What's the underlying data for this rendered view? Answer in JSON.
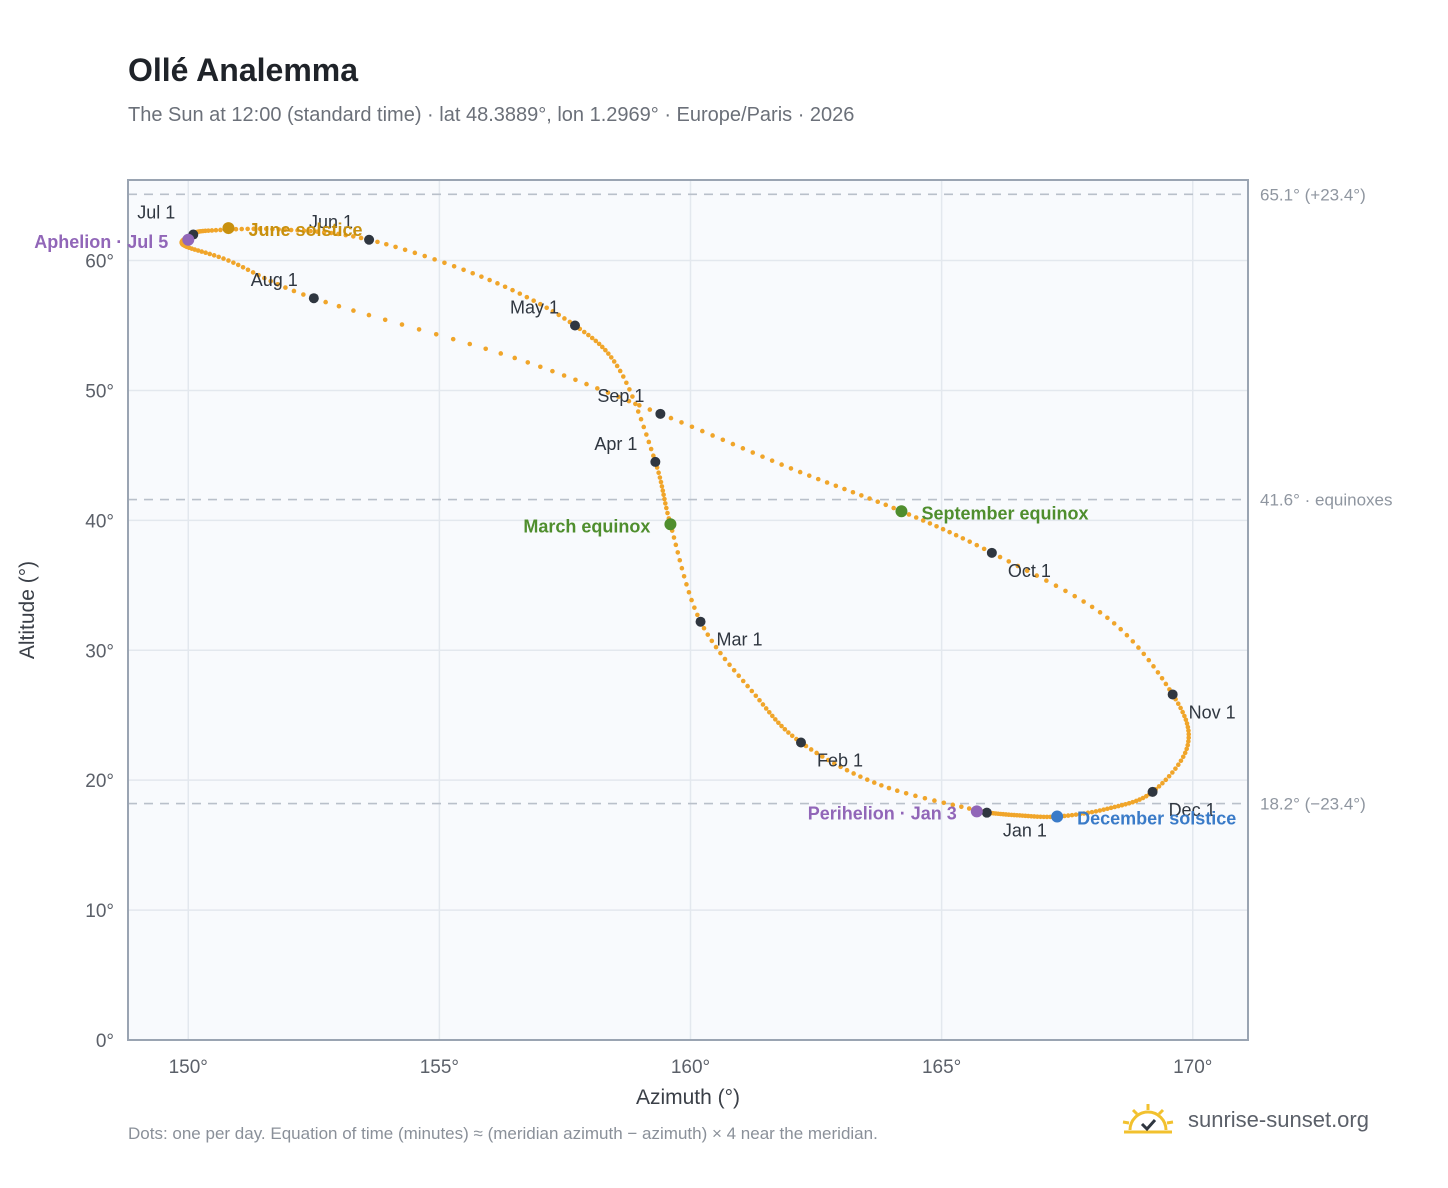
{
  "header": {
    "title": "Ollé Analemma",
    "subtitle": "The Sun at 12:00 (standard time) · lat 48.3889°, lon 1.2969° · Europe/Paris · 2026"
  },
  "footer": {
    "note": "Dots: one per day. Equation of time (minutes) ≈ (meridian azimuth − azimuth) × 4 near the meridian.",
    "brand": "sunrise-sunset.org",
    "brand_icon": "sun-logo-icon"
  },
  "colors": {
    "curve": "#f0a52a",
    "month_marker": "#2f3640",
    "june_solstice": "#c8900e",
    "december_solstice": "#3a7bc8",
    "equinox": "#4f8e2e",
    "apsis": "#9166b8",
    "reference_line": "#b9c0ca",
    "plot_background": "#f8fafd",
    "grid": "#e3e8ee"
  },
  "chart_data": {
    "type": "scatter",
    "xlabel": "Azimuth (°)",
    "ylabel": "Altitude (°)",
    "xlim": [
      148.8,
      171.1
    ],
    "ylim": [
      0,
      66.2
    ],
    "xticks": [
      150,
      155,
      160,
      165,
      170
    ],
    "xtick_labels": [
      "150°",
      "155°",
      "160°",
      "165°",
      "170°"
    ],
    "yticks": [
      0,
      10,
      20,
      30,
      40,
      50,
      60
    ],
    "ytick_labels": [
      "0°",
      "10°",
      "20°",
      "30°",
      "40°",
      "50°",
      "60°"
    ],
    "grid": true,
    "reference_lines": [
      {
        "y": 65.1,
        "label": "65.1° (+23.4°)"
      },
      {
        "y": 41.6,
        "label": "41.6° · equinoxes"
      },
      {
        "y": 18.2,
        "label": "18.2° (−23.4°)"
      }
    ],
    "month_markers": [
      {
        "label": "Jan 1",
        "x": 165.9,
        "y": 17.5
      },
      {
        "label": "Feb 1",
        "x": 162.2,
        "y": 22.9
      },
      {
        "label": "Mar 1",
        "x": 160.2,
        "y": 32.2
      },
      {
        "label": "Apr 1",
        "x": 159.3,
        "y": 44.5
      },
      {
        "label": "May 1",
        "x": 157.7,
        "y": 55.0
      },
      {
        "label": "Jun 1",
        "x": 153.6,
        "y": 61.6
      },
      {
        "label": "Jul 1",
        "x": 150.1,
        "y": 62.0
      },
      {
        "label": "Aug 1",
        "x": 152.5,
        "y": 57.1
      },
      {
        "label": "Sep 1",
        "x": 159.4,
        "y": 48.2
      },
      {
        "label": "Oct 1",
        "x": 166.0,
        "y": 37.5
      },
      {
        "label": "Nov 1",
        "x": 169.6,
        "y": 26.6
      },
      {
        "label": "Dec 1",
        "x": 169.2,
        "y": 19.1
      }
    ],
    "events": [
      {
        "label": "June solstice",
        "x": 150.8,
        "y": 62.5,
        "color_key": "june_solstice"
      },
      {
        "label": "December solstice",
        "x": 167.3,
        "y": 17.2,
        "color_key": "december_solstice"
      },
      {
        "label": "March equinox",
        "x": 159.6,
        "y": 39.7,
        "color_key": "equinox"
      },
      {
        "label": "September equinox",
        "x": 164.2,
        "y": 40.7,
        "color_key": "equinox"
      },
      {
        "label": "Aphelion · Jul 5",
        "x": 150.0,
        "y": 61.6,
        "color_key": "apsis"
      },
      {
        "label": "Perihelion · Jan 3",
        "x": 165.7,
        "y": 17.6,
        "color_key": "apsis"
      }
    ]
  }
}
